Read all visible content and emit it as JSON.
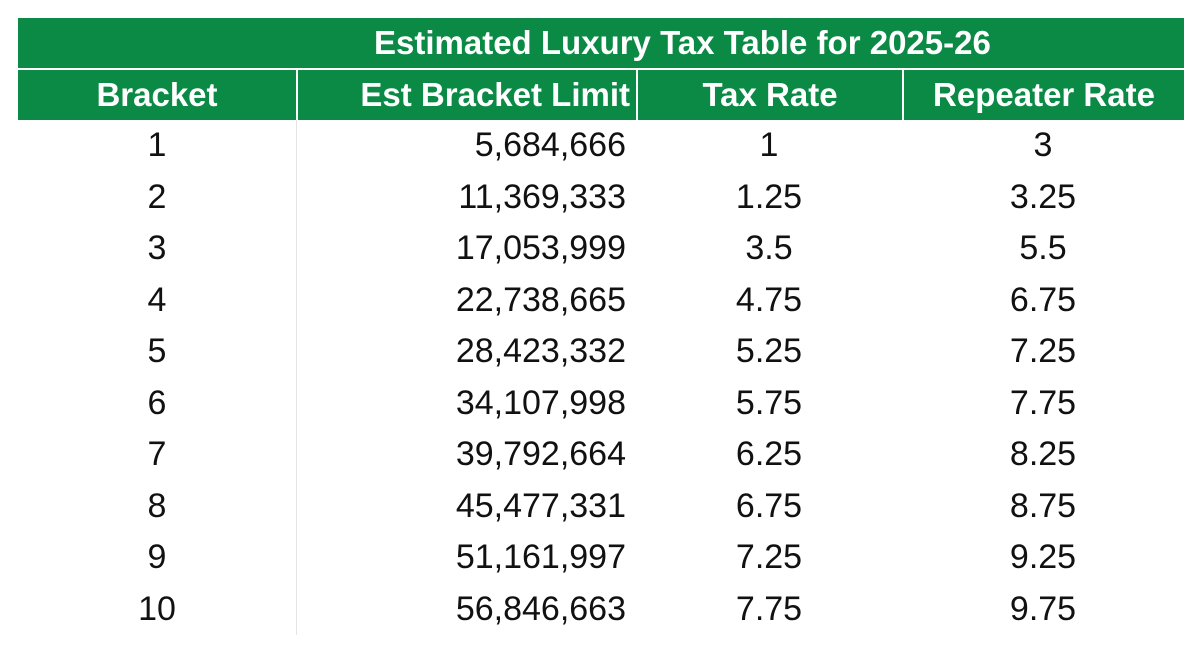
{
  "chart_data": {
    "type": "table",
    "title": "Estimated Luxury Tax Table for 2025-26",
    "columns": [
      "Bracket",
      "Est Bracket Limit",
      "Tax Rate",
      "Repeater Rate"
    ],
    "rows": [
      [
        "1",
        "5,684,666",
        "1",
        "3"
      ],
      [
        "2",
        "11,369,333",
        "1.25",
        "3.25"
      ],
      [
        "3",
        "17,053,999",
        "3.5",
        "5.5"
      ],
      [
        "4",
        "22,738,665",
        "4.75",
        "6.75"
      ],
      [
        "5",
        "28,423,332",
        "5.25",
        "7.25"
      ],
      [
        "6",
        "34,107,998",
        "5.75",
        "7.75"
      ],
      [
        "7",
        "39,792,664",
        "6.25",
        "8.25"
      ],
      [
        "8",
        "45,477,331",
        "6.75",
        "8.75"
      ],
      [
        "9",
        "51,161,997",
        "7.25",
        "9.25"
      ],
      [
        "10",
        "56,846,663",
        "7.75",
        "9.75"
      ]
    ]
  },
  "colors": {
    "header_bg": "#0a8a45",
    "header_text": "#ffffff",
    "body_text": "#111111"
  }
}
